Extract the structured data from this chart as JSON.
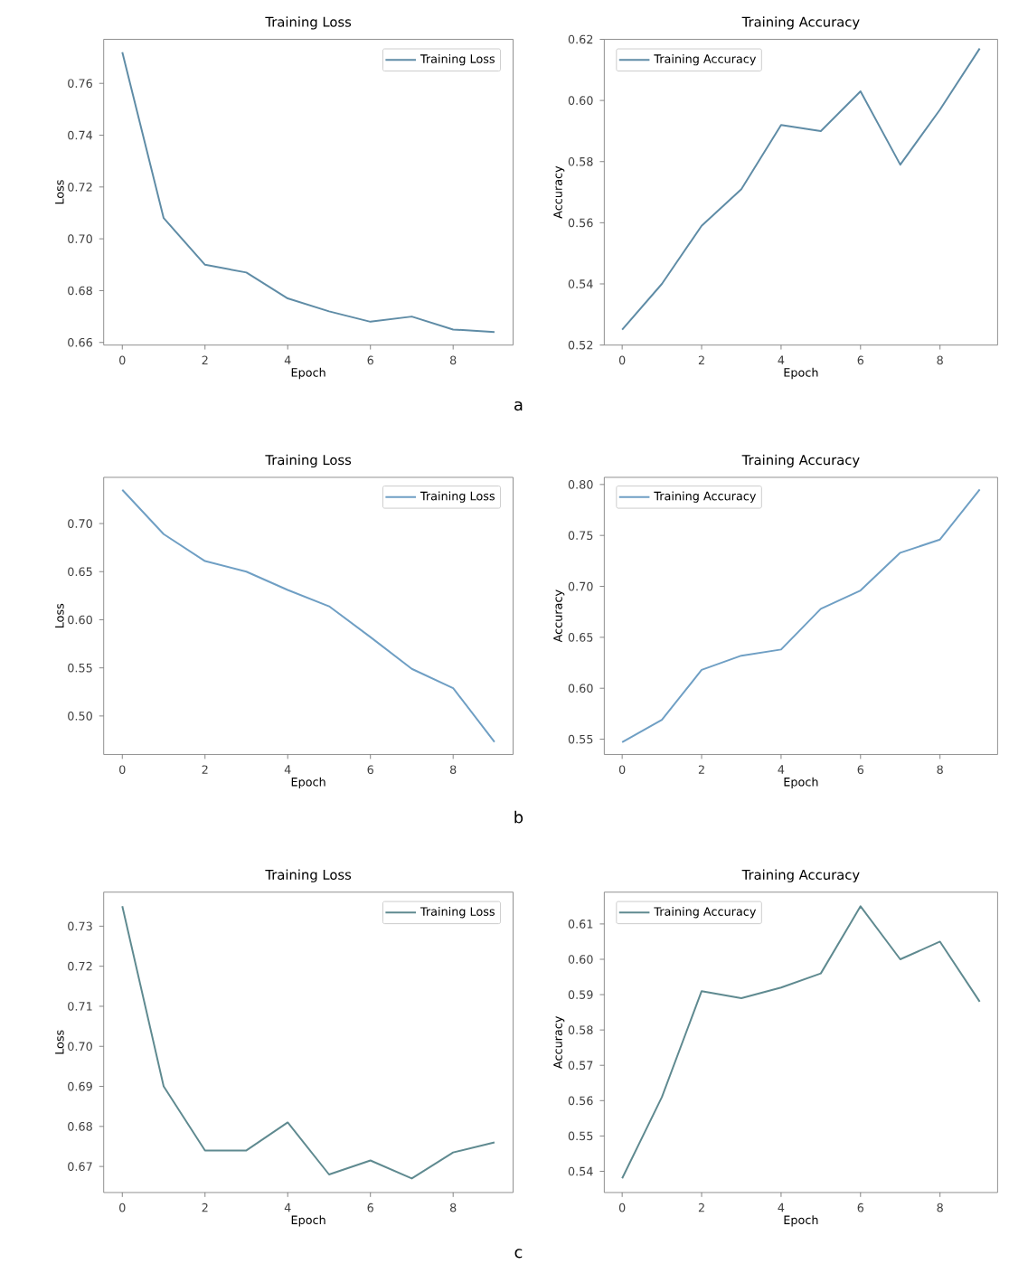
{
  "chart_data": [
    {
      "type": "line",
      "title": "Training Loss",
      "xlabel": "Epoch",
      "ylabel": "Loss",
      "x": [
        0,
        1,
        2,
        3,
        4,
        5,
        6,
        7,
        8,
        9
      ],
      "series": [
        {
          "name": "Training Loss",
          "color": "#5f8ca6",
          "values": [
            0.772,
            0.708,
            0.69,
            0.687,
            0.677,
            0.672,
            0.668,
            0.67,
            0.665,
            0.664
          ]
        }
      ],
      "xlim": [
        -0.45,
        9.45
      ],
      "ylim": [
        0.659,
        0.777
      ],
      "xticks": [
        0,
        2,
        4,
        6,
        8
      ],
      "yticks": [
        0.66,
        0.68,
        {
          "value": 0.7,
          "label": "0.70"
        },
        0.72,
        0.74,
        0.76
      ],
      "legend": "top right"
    },
    {
      "type": "line",
      "title": "Training Accuracy",
      "xlabel": "Epoch",
      "ylabel": "Accuracy",
      "x": [
        0,
        1,
        2,
        3,
        4,
        5,
        6,
        7,
        8,
        9
      ],
      "series": [
        {
          "name": "Training Accuracy",
          "color": "#5f8ca6",
          "values": [
            0.525,
            0.54,
            0.559,
            0.571,
            0.592,
            0.59,
            0.603,
            0.579,
            0.597,
            0.617
          ]
        }
      ],
      "xlim": [
        -0.45,
        9.45
      ],
      "ylim": [
        0.52,
        0.62
      ],
      "xticks": [
        0,
        2,
        4,
        6,
        8
      ],
      "yticks": [
        0.52,
        0.54,
        0.56,
        0.58,
        {
          "value": 0.6,
          "label": "0.60"
        },
        0.62
      ],
      "legend": "top left",
      "annotations": [
        "a"
      ]
    },
    {
      "type": "line",
      "title": "Training Loss",
      "xlabel": "Epoch",
      "ylabel": "Loss",
      "x": [
        0,
        1,
        2,
        3,
        4,
        5,
        6,
        7,
        8,
        9
      ],
      "series": [
        {
          "name": "Training Loss",
          "color": "#6f9fc4",
          "values": [
            0.735,
            0.689,
            0.661,
            0.65,
            0.631,
            0.614,
            0.582,
            0.549,
            0.529,
            0.473
          ]
        }
      ],
      "xlim": [
        -0.45,
        9.45
      ],
      "ylim": [
        0.46,
        0.748
      ],
      "xticks": [
        0,
        2,
        4,
        6,
        8
      ],
      "yticks": [
        {
          "value": 0.5,
          "label": "0.50"
        },
        0.55,
        {
          "value": 0.6,
          "label": "0.60"
        },
        0.65,
        {
          "value": 0.7,
          "label": "0.70"
        }
      ],
      "legend": "top right"
    },
    {
      "type": "line",
      "title": "Training Accuracy",
      "xlabel": "Epoch",
      "ylabel": "Accuracy",
      "x": [
        0,
        1,
        2,
        3,
        4,
        5,
        6,
        7,
        8,
        9
      ],
      "series": [
        {
          "name": "Training Accuracy",
          "color": "#6f9fc4",
          "values": [
            0.547,
            0.569,
            0.618,
            0.632,
            0.638,
            0.678,
            0.696,
            0.733,
            0.746,
            0.795
          ]
        }
      ],
      "xlim": [
        -0.45,
        9.45
      ],
      "ylim": [
        0.535,
        0.807
      ],
      "xticks": [
        0,
        2,
        4,
        6,
        8
      ],
      "yticks": [
        0.55,
        {
          "value": 0.6,
          "label": "0.60"
        },
        0.65,
        {
          "value": 0.7,
          "label": "0.70"
        },
        0.75,
        {
          "value": 0.8,
          "label": "0.80"
        }
      ],
      "legend": "top left",
      "annotations": [
        "b"
      ]
    },
    {
      "type": "line",
      "title": "Training Loss",
      "xlabel": "Epoch",
      "ylabel": "Loss",
      "x": [
        0,
        1,
        2,
        3,
        4,
        5,
        6,
        7,
        8,
        9
      ],
      "series": [
        {
          "name": "Training Loss",
          "color": "#5f8a90",
          "values": [
            0.735,
            0.69,
            0.674,
            0.674,
            0.681,
            0.668,
            0.6715,
            0.667,
            0.6735,
            0.676
          ]
        }
      ],
      "xlim": [
        -0.45,
        9.45
      ],
      "ylim": [
        0.6635,
        0.7385
      ],
      "xticks": [
        0,
        2,
        4,
        6,
        8
      ],
      "yticks": [
        0.67,
        0.68,
        0.69,
        {
          "value": 0.7,
          "label": "0.70"
        },
        0.71,
        0.72,
        0.73
      ],
      "legend": "top right"
    },
    {
      "type": "line",
      "title": "Training Accuracy",
      "xlabel": "Epoch",
      "ylabel": "Accuracy",
      "x": [
        0,
        1,
        2,
        3,
        4,
        5,
        6,
        7,
        8,
        9
      ],
      "series": [
        {
          "name": "Training Accuracy",
          "color": "#5f8a90",
          "values": [
            0.538,
            0.561,
            0.591,
            0.589,
            0.592,
            0.596,
            0.615,
            0.6,
            0.605,
            0.588
          ]
        }
      ],
      "xlim": [
        -0.45,
        9.45
      ],
      "ylim": [
        0.534,
        0.619
      ],
      "xticks": [
        0,
        2,
        4,
        6,
        8
      ],
      "yticks": [
        0.54,
        0.55,
        0.56,
        0.57,
        0.58,
        0.59,
        {
          "value": 0.6,
          "label": "0.60"
        },
        0.61
      ],
      "legend": "top left",
      "annotations": [
        "c"
      ]
    }
  ]
}
